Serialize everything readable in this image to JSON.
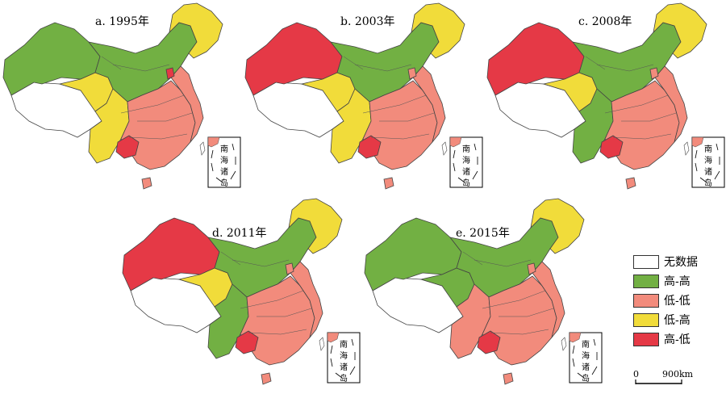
{
  "colors": {
    "none": "#ffffff",
    "high_high": "#72b043",
    "low_low": "#f28b7c",
    "low_high": "#f1dc3a",
    "high_low": "#e53946",
    "outline": "#444444"
  },
  "panels": [
    {
      "title": "a. 1995年",
      "west_tibet": "none",
      "west_xinjiang": "high_high",
      "north": "high_high",
      "qinghai": "low_high",
      "northeast_top": "low_high",
      "southwest": "low_high",
      "south_central": "low_low",
      "east": "low_low",
      "guizhou": "high_low",
      "beijing": "high_low",
      "hainan": "low_low"
    },
    {
      "title": "b. 2003年",
      "west_tibet": "none",
      "west_xinjiang": "high_low",
      "north": "high_high",
      "qinghai": "low_high",
      "northeast_top": "low_high",
      "southwest": "low_high",
      "south_central": "low_low",
      "east": "low_low",
      "guizhou": "high_low",
      "beijing": "low_low",
      "hainan": "low_low"
    },
    {
      "title": "c. 2008年",
      "west_tibet": "none",
      "west_xinjiang": "high_low",
      "north": "high_high",
      "qinghai": "low_high",
      "northeast_top": "low_high",
      "southwest": "high_high",
      "south_central": "low_low",
      "east": "low_low",
      "guizhou": "high_low",
      "beijing": "low_low",
      "hainan": "low_low"
    },
    {
      "title": "d. 2011年",
      "west_tibet": "none",
      "west_xinjiang": "high_low",
      "north": "high_high",
      "qinghai": "low_high",
      "northeast_top": "low_high",
      "southwest": "high_high",
      "south_central": "low_low",
      "east": "low_low",
      "guizhou": "high_low",
      "beijing": "low_low",
      "hainan": "low_low"
    },
    {
      "title": "e. 2015年",
      "west_tibet": "none",
      "west_xinjiang": "high_high",
      "north": "high_high",
      "qinghai": "high_high",
      "northeast_top": "low_high",
      "southwest": "low_low",
      "south_central": "low_low",
      "east": "low_low",
      "guizhou": "high_low",
      "beijing": "low_low",
      "hainan": "low_low"
    }
  ],
  "inset_label": [
    "南",
    "海",
    "诸",
    "岛"
  ],
  "legend": [
    {
      "label": "无数据",
      "color": "#ffffff"
    },
    {
      "label": "高-高",
      "color": "#72b043"
    },
    {
      "label": "低-低",
      "color": "#f28b7c"
    },
    {
      "label": "低-高",
      "color": "#f1dc3a"
    },
    {
      "label": "高-低",
      "color": "#e53946"
    }
  ],
  "scale": {
    "start": "0",
    "end": "900km"
  }
}
